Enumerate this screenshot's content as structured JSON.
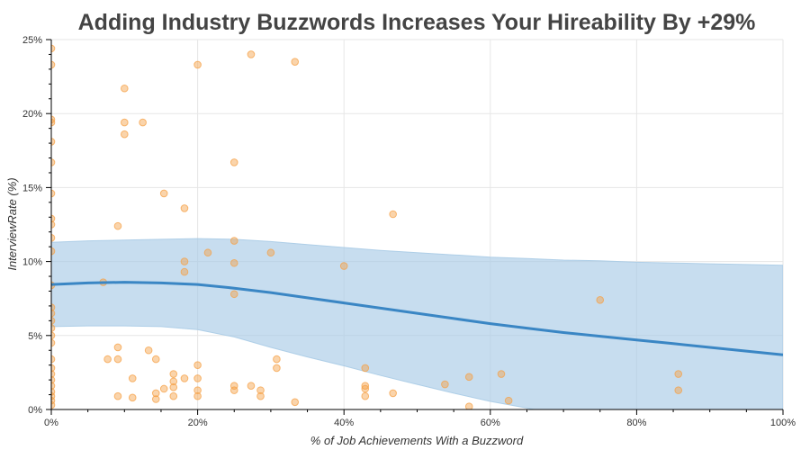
{
  "chart_data": {
    "type": "scatter",
    "title": "Adding Industry Buzzwords Increases Your Hireability By +29%",
    "xlabel": "% of Job Achievements With a Buzzword",
    "ylabel": "InterviewRate (%)",
    "xlim": [
      0,
      100
    ],
    "ylim": [
      0,
      25
    ],
    "x_ticks": [
      "0%",
      "20%",
      "40%",
      "60%",
      "80%",
      "100%"
    ],
    "y_ticks": [
      "0%",
      "5%",
      "10%",
      "15%",
      "20%",
      "25%"
    ],
    "grid": true,
    "colors": {
      "points": "#f5a045",
      "trend": "#3a86c4",
      "band": "#a9cbe6"
    },
    "points": [
      {
        "x": 0,
        "y": 24.4
      },
      {
        "x": 0,
        "y": 23.3
      },
      {
        "x": 0,
        "y": 19.6
      },
      {
        "x": 0,
        "y": 19.4
      },
      {
        "x": 0,
        "y": 18.1
      },
      {
        "x": 0,
        "y": 16.7
      },
      {
        "x": 0,
        "y": 14.6
      },
      {
        "x": 0,
        "y": 12.9
      },
      {
        "x": 0,
        "y": 12.5
      },
      {
        "x": 0,
        "y": 11.6
      },
      {
        "x": 0,
        "y": 10.7
      },
      {
        "x": 0,
        "y": 8.4
      },
      {
        "x": 0,
        "y": 6.9
      },
      {
        "x": 0,
        "y": 6.5
      },
      {
        "x": 0,
        "y": 6.0
      },
      {
        "x": 0,
        "y": 5.5
      },
      {
        "x": 0,
        "y": 5.0
      },
      {
        "x": 0,
        "y": 4.5
      },
      {
        "x": 0,
        "y": 3.4
      },
      {
        "x": 0,
        "y": 2.8
      },
      {
        "x": 0,
        "y": 2.4
      },
      {
        "x": 0,
        "y": 2.0
      },
      {
        "x": 0,
        "y": 1.6
      },
      {
        "x": 0,
        "y": 1.2
      },
      {
        "x": 0,
        "y": 0.9
      },
      {
        "x": 0,
        "y": 0.6
      },
      {
        "x": 0,
        "y": 0.3
      },
      {
        "x": 7.1,
        "y": 8.6
      },
      {
        "x": 7.7,
        "y": 3.4
      },
      {
        "x": 9.1,
        "y": 4.2
      },
      {
        "x": 9.1,
        "y": 3.4
      },
      {
        "x": 9.1,
        "y": 0.9
      },
      {
        "x": 9.1,
        "y": 12.4
      },
      {
        "x": 10.0,
        "y": 21.7
      },
      {
        "x": 10.0,
        "y": 19.4
      },
      {
        "x": 10.0,
        "y": 18.6
      },
      {
        "x": 11.1,
        "y": 2.1
      },
      {
        "x": 11.1,
        "y": 0.8
      },
      {
        "x": 12.5,
        "y": 19.4
      },
      {
        "x": 13.3,
        "y": 4.0
      },
      {
        "x": 14.3,
        "y": 3.4
      },
      {
        "x": 14.3,
        "y": 1.1
      },
      {
        "x": 14.3,
        "y": 0.7
      },
      {
        "x": 15.4,
        "y": 14.6
      },
      {
        "x": 15.4,
        "y": 1.4
      },
      {
        "x": 16.7,
        "y": 2.4
      },
      {
        "x": 16.7,
        "y": 1.9
      },
      {
        "x": 16.7,
        "y": 1.5
      },
      {
        "x": 16.7,
        "y": 0.9
      },
      {
        "x": 18.2,
        "y": 13.6
      },
      {
        "x": 18.2,
        "y": 10.0
      },
      {
        "x": 18.2,
        "y": 9.3
      },
      {
        "x": 18.2,
        "y": 2.1
      },
      {
        "x": 20.0,
        "y": 23.3
      },
      {
        "x": 20.0,
        "y": 3.0
      },
      {
        "x": 20.0,
        "y": 2.1
      },
      {
        "x": 20.0,
        "y": 1.3
      },
      {
        "x": 20.0,
        "y": 0.9
      },
      {
        "x": 21.4,
        "y": 10.6
      },
      {
        "x": 25.0,
        "y": 16.7
      },
      {
        "x": 25.0,
        "y": 11.4
      },
      {
        "x": 25.0,
        "y": 9.9
      },
      {
        "x": 25.0,
        "y": 7.8
      },
      {
        "x": 25.0,
        "y": 1.6
      },
      {
        "x": 25.0,
        "y": 1.3
      },
      {
        "x": 27.3,
        "y": 24.0
      },
      {
        "x": 27.3,
        "y": 1.6
      },
      {
        "x": 28.6,
        "y": 1.3
      },
      {
        "x": 28.6,
        "y": 0.9
      },
      {
        "x": 30.0,
        "y": 10.6
      },
      {
        "x": 30.8,
        "y": 3.4
      },
      {
        "x": 30.8,
        "y": 2.8
      },
      {
        "x": 33.3,
        "y": 23.5
      },
      {
        "x": 33.3,
        "y": 0.5
      },
      {
        "x": 40.0,
        "y": 9.7
      },
      {
        "x": 42.9,
        "y": 2.8
      },
      {
        "x": 42.9,
        "y": 1.6
      },
      {
        "x": 42.9,
        "y": 1.4
      },
      {
        "x": 42.9,
        "y": 0.9
      },
      {
        "x": 46.7,
        "y": 13.2
      },
      {
        "x": 46.7,
        "y": 1.1
      },
      {
        "x": 53.8,
        "y": 1.7
      },
      {
        "x": 57.1,
        "y": 2.2
      },
      {
        "x": 57.1,
        "y": 0.2
      },
      {
        "x": 61.5,
        "y": 2.4
      },
      {
        "x": 62.5,
        "y": 0.6
      },
      {
        "x": 75.0,
        "y": 7.4
      },
      {
        "x": 85.7,
        "y": 2.4
      },
      {
        "x": 85.7,
        "y": 1.3
      }
    ],
    "trend": {
      "x": [
        0,
        5,
        10,
        15,
        20,
        25,
        30,
        35,
        40,
        45,
        50,
        55,
        60,
        65,
        70,
        75,
        80,
        85,
        90,
        95,
        100
      ],
      "y": [
        8.45,
        8.55,
        8.6,
        8.55,
        8.45,
        8.2,
        7.9,
        7.55,
        7.2,
        6.85,
        6.5,
        6.15,
        5.8,
        5.5,
        5.2,
        4.95,
        4.7,
        4.45,
        4.2,
        3.95,
        3.7
      ],
      "upper": [
        11.3,
        11.4,
        11.45,
        11.5,
        11.55,
        11.5,
        11.35,
        11.15,
        10.95,
        10.75,
        10.6,
        10.45,
        10.3,
        10.2,
        10.1,
        10.05,
        9.95,
        9.9,
        9.85,
        9.8,
        9.75
      ],
      "lower": [
        5.6,
        5.65,
        5.65,
        5.6,
        5.4,
        4.9,
        4.2,
        3.55,
        2.95,
        2.3,
        1.7,
        1.1,
        0.55,
        0.1,
        -0.4,
        -0.85,
        -1.3,
        -1.75,
        -2.2,
        -2.6,
        -3.0
      ]
    }
  }
}
